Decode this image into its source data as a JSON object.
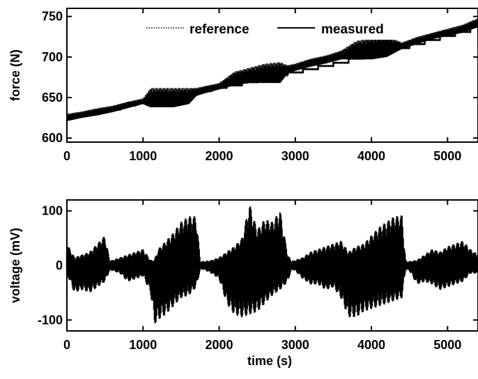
{
  "chart_data": [
    {
      "type": "line",
      "ylabel": "force (N)",
      "xlabel": "",
      "xlim": [
        0,
        5400
      ],
      "ylim": [
        595,
        760
      ],
      "xticks": [
        0,
        1000,
        2000,
        3000,
        4000,
        5000
      ],
      "yticks": [
        600,
        650,
        700,
        750
      ],
      "x_tick_labels": [
        "0",
        "1000",
        "2000",
        "3000",
        "4000",
        "5000"
      ],
      "y_tick_labels": [
        "600",
        "650",
        "700",
        "750"
      ],
      "legend": {
        "position": "top",
        "entries": [
          "reference",
          "measured"
        ]
      },
      "series": [
        {
          "name": "reference",
          "style": "dotted",
          "x": [
            0,
            100,
            100,
            300,
            300,
            500,
            500,
            700,
            700,
            900,
            900,
            1100,
            1100,
            1300,
            1300,
            1500,
            1500,
            1700,
            1700,
            1900,
            1900,
            2100,
            2100,
            2300,
            2300,
            2500,
            2500,
            2700,
            2700,
            2900,
            2900,
            3100,
            3100,
            3300,
            3300,
            3500,
            3500,
            3700,
            3700,
            3900,
            3900,
            4100,
            4100,
            4300,
            4300,
            4500,
            4500,
            4700,
            4700,
            4900,
            4900,
            5100,
            5100,
            5300,
            5300,
            5400
          ],
          "y": [
            625,
            625,
            628,
            628,
            632,
            632,
            635,
            635,
            640,
            640,
            643,
            643,
            647,
            647,
            650,
            650,
            654,
            654,
            657,
            657,
            661,
            661,
            664,
            664,
            668,
            668,
            672,
            672,
            676,
            676,
            680,
            680,
            684,
            684,
            688,
            688,
            692,
            692,
            697,
            697,
            701,
            701,
            705,
            705,
            710,
            710,
            715,
            715,
            720,
            720,
            725,
            725,
            730,
            730,
            736,
            736
          ]
        },
        {
          "name": "measured",
          "style": "solid",
          "color": "#000000",
          "x": [
            0,
            100,
            100,
            300,
            300,
            500,
            500,
            700,
            700,
            900,
            900,
            1100,
            1100,
            1300,
            1300,
            1500,
            1500,
            1700,
            1700,
            1900,
            1900,
            2100,
            2100,
            2300,
            2300,
            2500,
            2500,
            2700,
            2700,
            2900,
            2900,
            3100,
            3100,
            3300,
            3300,
            3500,
            3500,
            3700,
            3700,
            3900,
            3900,
            4100,
            4100,
            4300,
            4300,
            4500,
            4500,
            4700,
            4700,
            4900,
            4900,
            5100,
            5100,
            5300,
            5300,
            5400
          ],
          "y": [
            625,
            625,
            628,
            628,
            632,
            632,
            635,
            635,
            640,
            640,
            643,
            643,
            648,
            648,
            651,
            651,
            655,
            655,
            658,
            658,
            662,
            662,
            665,
            665,
            670,
            670,
            674,
            674,
            678,
            678,
            681,
            681,
            685,
            685,
            689,
            689,
            693,
            693,
            698,
            698,
            702,
            702,
            706,
            706,
            711,
            711,
            716,
            716,
            721,
            721,
            726,
            726,
            731,
            731,
            737,
            737
          ],
          "band_x": [
            0,
            200,
            400,
            600,
            800,
            1000,
            1100,
            1200,
            1400,
            1600,
            1700,
            1800,
            2000,
            2200,
            2400,
            2600,
            2800,
            2900,
            3000,
            3200,
            3400,
            3600,
            3800,
            4000,
            4200,
            4400,
            4600,
            4800,
            5000,
            5200,
            5400
          ],
          "band_low": [
            621,
            625,
            628,
            632,
            637,
            642,
            638,
            638,
            638,
            642,
            652,
            655,
            660,
            665,
            668,
            668,
            668,
            680,
            683,
            688,
            692,
            697,
            697,
            697,
            700,
            710,
            716,
            722,
            726,
            730,
            737
          ],
          "band_high": [
            630,
            633,
            637,
            640,
            645,
            649,
            662,
            662,
            662,
            662,
            662,
            664,
            668,
            682,
            687,
            692,
            694,
            690,
            692,
            698,
            702,
            708,
            720,
            724,
            726,
            718,
            725,
            730,
            735,
            740,
            748
          ]
        }
      ]
    },
    {
      "type": "line",
      "ylabel": "voltage (mV)",
      "xlabel": "time (s)",
      "xlim": [
        0,
        5400
      ],
      "ylim": [
        -120,
        120
      ],
      "xticks": [
        0,
        1000,
        2000,
        3000,
        4000,
        5000
      ],
      "yticks": [
        -100,
        0,
        100
      ],
      "x_tick_labels": [
        "0",
        "1000",
        "2000",
        "3000",
        "4000",
        "5000"
      ],
      "y_tick_labels": [
        "-100",
        "0",
        "100"
      ],
      "series": [
        {
          "name": "",
          "style": "solid",
          "color": "#000000",
          "x": [
            0,
            100,
            200,
            300,
            400,
            500,
            560,
            600,
            700,
            800,
            900,
            1000,
            1100,
            1150,
            1200,
            1300,
            1400,
            1500,
            1600,
            1700,
            1750,
            1800,
            1900,
            2000,
            2100,
            2200,
            2300,
            2400,
            2500,
            2600,
            2700,
            2800,
            2900,
            2950,
            3000,
            3100,
            3200,
            3300,
            3400,
            3500,
            3600,
            3700,
            3800,
            3900,
            4000,
            4100,
            4200,
            4300,
            4400,
            4450,
            4500,
            4600,
            4700,
            4800,
            4900,
            5000,
            5100,
            5200,
            5300,
            5400
          ],
          "high": [
            40,
            15,
            20,
            25,
            40,
            55,
            10,
            10,
            15,
            20,
            25,
            30,
            10,
            10,
            30,
            45,
            60,
            80,
            90,
            90,
            8,
            8,
            10,
            15,
            25,
            35,
            50,
            112,
            65,
            85,
            80,
            100,
            20,
            8,
            10,
            15,
            25,
            30,
            35,
            40,
            45,
            25,
            35,
            40,
            55,
            70,
            80,
            90,
            92,
            8,
            8,
            10,
            20,
            30,
            25,
            35,
            40,
            45,
            30,
            20
          ],
          "low": [
            -15,
            -50,
            -45,
            -50,
            -40,
            -30,
            -10,
            -10,
            -15,
            -30,
            -25,
            -20,
            -50,
            -108,
            -100,
            -90,
            -75,
            -60,
            -55,
            -40,
            -8,
            -8,
            -15,
            -25,
            -70,
            -90,
            -95,
            -90,
            -85,
            -70,
            -55,
            -45,
            -30,
            -8,
            -10,
            -25,
            -35,
            -35,
            -45,
            -40,
            -60,
            -95,
            -95,
            -85,
            -80,
            -75,
            -70,
            -65,
            -60,
            -8,
            -10,
            -35,
            -30,
            -35,
            -45,
            -40,
            -35,
            -30,
            -15,
            -15
          ]
        }
      ]
    }
  ]
}
